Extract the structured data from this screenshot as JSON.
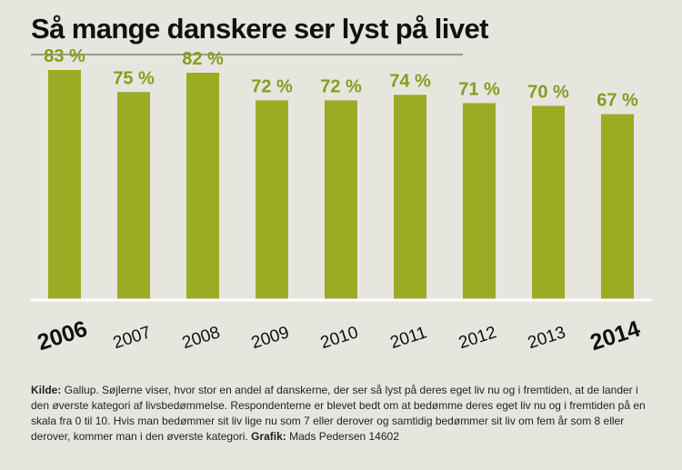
{
  "title": "Så mange danskere ser lyst på livet",
  "colors": {
    "bar": "#9bab24",
    "label": "#8a9a1e",
    "axis": "#ffffff",
    "text": "#111111"
  },
  "chart_data": {
    "type": "bar",
    "title": "Så mange danskere ser lyst på livet",
    "categories": [
      "2006",
      "2007",
      "2008",
      "2009",
      "2010",
      "2011",
      "2012",
      "2013",
      "2014"
    ],
    "values": [
      83,
      75,
      82,
      72,
      72,
      74,
      71,
      70,
      67
    ],
    "value_labels": [
      "83 %",
      "75 %",
      "82 %",
      "72 %",
      "72 %",
      "74 %",
      "71 %",
      "70 %",
      "67 %"
    ],
    "highlighted_categories": [
      "2006",
      "2014"
    ],
    "xlabel": "",
    "ylabel": "",
    "ylim": [
      0,
      100
    ],
    "unit": "%",
    "grid": false
  },
  "footnote": {
    "source_label": "Kilde:",
    "source_text": " Gallup. Søjlerne viser, hvor stor en andel af danskerne, der ser så lyst på deres eget liv nu og i fremtiden, at de lander i den øverste kategori af livsbedømmelse. Respondenterne er blevet bedt om at bedømme deres eget liv nu og i fremtiden på en skala fra 0 til 10. Hvis man bedømmer sit liv lige nu som 7 eller derover og samtidig bedømmer sit liv om fem år som 8 eller derover, kommer man i den øverste kategori. ",
    "graphic_label": "Grafik:",
    "graphic_text": " Mads Pedersen 14602"
  }
}
